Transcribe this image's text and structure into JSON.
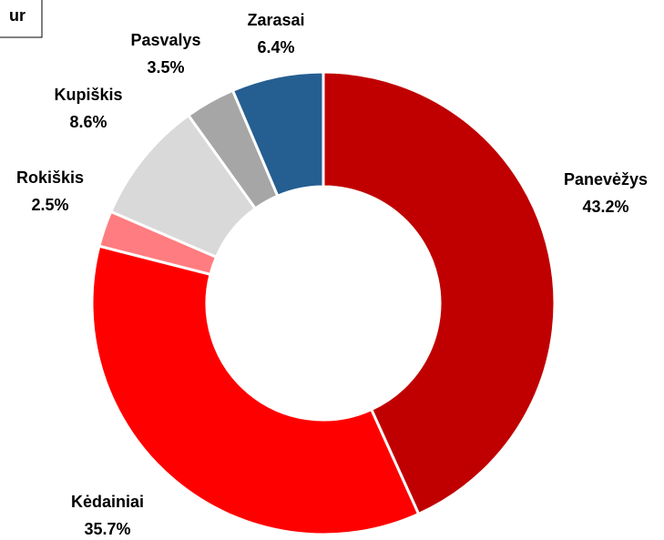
{
  "chart_data": {
    "type": "donut",
    "annotation": "ur",
    "categories": [
      "Panevėžys",
      "Kėdainiai",
      "Rokiškis",
      "Kupiškis",
      "Pasvalys",
      "Zarasai"
    ],
    "values": [
      43.2,
      35.7,
      2.5,
      8.6,
      3.5,
      6.4
    ],
    "value_labels": [
      "43.2%",
      "35.7%",
      "2.5%",
      "8.6%",
      "3.5%",
      "6.4%"
    ],
    "colors": [
      "#c00000",
      "#ff0000",
      "#ff7c80",
      "#d9d9d9",
      "#a6a6a6",
      "#255e91"
    ]
  }
}
